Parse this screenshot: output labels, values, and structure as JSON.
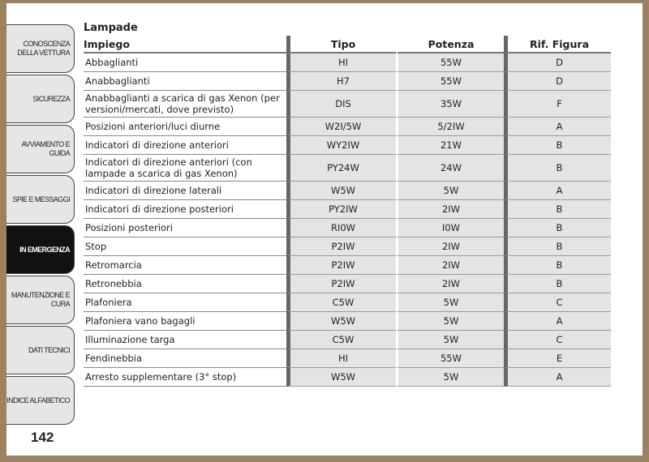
{
  "sidebar": {
    "tabs": [
      {
        "label": "Conoscenza della vettura",
        "active": false
      },
      {
        "label": "Sicurezza",
        "active": false
      },
      {
        "label": "Avviamento e guida",
        "active": false
      },
      {
        "label": "Spie e messaggi",
        "active": false
      },
      {
        "label": "In emergenza",
        "active": true
      },
      {
        "label": "Manutenzione e cura",
        "active": false
      },
      {
        "label": "Dati tecnici",
        "active": false
      },
      {
        "label": "Indice alfabetico",
        "active": false
      }
    ]
  },
  "page_number": "142",
  "section_title": "Lampade",
  "table": {
    "headers": [
      "Impiego",
      "Tipo",
      "Potenza",
      "Rif. Figura"
    ],
    "rows": [
      [
        "Abbaglianti",
        "HI",
        "55W",
        "D"
      ],
      [
        "Anabbaglianti",
        "H7",
        "55W",
        "D"
      ],
      [
        "Anabbaglianti a scarica di gas Xenon (per versioni/mercati, dove previsto)",
        "DIS",
        "35W",
        "F"
      ],
      [
        "Posizioni anteriori/luci diurne",
        "W2I/5W",
        "5/2IW",
        "A"
      ],
      [
        "Indicatori di direzione anteriori",
        "WY2IW",
        "21W",
        "B"
      ],
      [
        "Indicatori di direzione anteriori (con lampade a scarica di gas Xenon)",
        "PY24W",
        "24W",
        "B"
      ],
      [
        "Indicatori di direzione laterali",
        "W5W",
        "5W",
        "A"
      ],
      [
        "Indicatori di direzione posteriori",
        "PY2IW",
        "2IW",
        "B"
      ],
      [
        "Posizioni posteriori",
        "RI0W",
        "I0W",
        "B"
      ],
      [
        "Stop",
        "P2IW",
        "2IW",
        "B"
      ],
      [
        "Retromarcia",
        "P2IW",
        "2IW",
        "B"
      ],
      [
        "Retronebbia",
        "P2IW",
        "2IW",
        "B"
      ],
      [
        "Plafoniera",
        "C5W",
        "5W",
        "C"
      ],
      [
        "Plafoniera vano bagagli",
        "W5W",
        "5W",
        "A"
      ],
      [
        "Illuminazione targa",
        "C5W",
        "5W",
        "C"
      ],
      [
        "Fendinebbia",
        "HI",
        "55W",
        "E"
      ],
      [
        "Arresto supplementare (3° stop)",
        "W5W",
        "5W",
        "A"
      ]
    ]
  }
}
